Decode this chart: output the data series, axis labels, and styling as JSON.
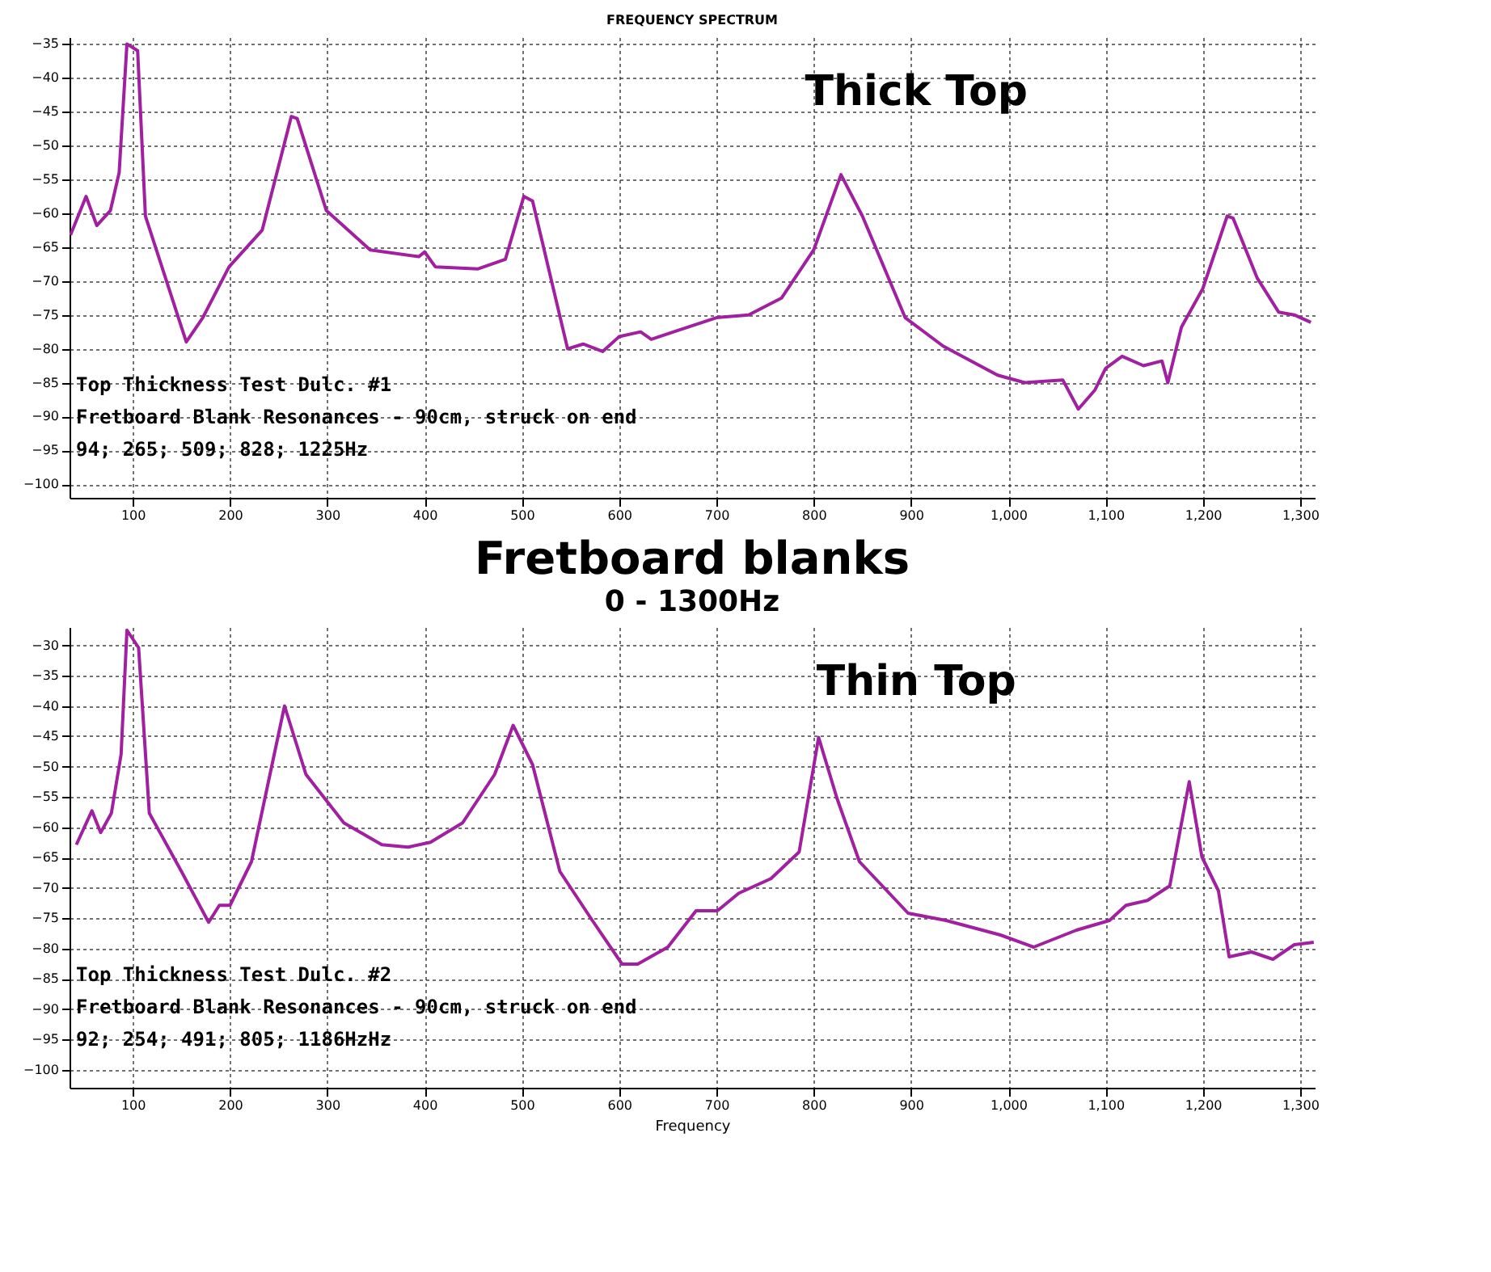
{
  "chart_data": [
    {
      "type": "line",
      "title": "FREQUENCY SPECTRUM",
      "annotations": [
        "Thick Top",
        "Top Thickness Test Dulc. #1",
        "Fretboard Blank Resonances - 90cm, struck on end",
        "94; 265; 509; 828; 1225Hz"
      ],
      "x": [
        36,
        52,
        63,
        77,
        86,
        94,
        105,
        113,
        155,
        172,
        199,
        233,
        263,
        269,
        299,
        344,
        394,
        400,
        411,
        455,
        483,
        502,
        511,
        547,
        563,
        583,
        600,
        622,
        633,
        656,
        700,
        733,
        767,
        800,
        828,
        850,
        894,
        933,
        989,
        1017,
        1056,
        1072,
        1089,
        1100,
        1117,
        1139,
        1158,
        1164,
        1178,
        1200,
        1225,
        1231,
        1256,
        1278,
        1294,
        1311
      ],
      "series": [
        {
          "color": "#a020a0",
          "values": [
            -63.2,
            -57.5,
            -61.8,
            -59.6,
            -54,
            -35,
            -36,
            -60.4,
            -79,
            -75.4,
            -67.9,
            -62.5,
            -45.7,
            -46,
            -59.6,
            -65.4,
            -66.4,
            -65.7,
            -67.9,
            -68.2,
            -66.8,
            -57.5,
            -58.2,
            -80,
            -79.3,
            -80.4,
            -78.2,
            -77.5,
            -78.6,
            -77.5,
            -75.4,
            -75,
            -72.5,
            -65.4,
            -54.3,
            -60.4,
            -75.4,
            -79.6,
            -83.9,
            -85,
            -84.6,
            -88.9,
            -86.1,
            -82.9,
            -81.1,
            -82.5,
            -81.8,
            -85,
            -76.8,
            -71.1,
            -60.4,
            -60.7,
            -69.6,
            -74.6,
            -75,
            -76.1
          ]
        }
      ],
      "xlim": [
        35,
        1315
      ],
      "ylim": [
        -102,
        -34
      ],
      "xticks": [
        100,
        200,
        300,
        400,
        500,
        600,
        700,
        800,
        900,
        {
          "value": 1000,
          "label": "1,000"
        },
        {
          "value": 1100,
          "label": "1,100"
        },
        {
          "value": 1200,
          "label": "1,200"
        },
        {
          "value": 1300,
          "label": "1,300"
        }
      ],
      "yticks": [
        -35,
        -40,
        -45,
        -50,
        -55,
        -60,
        -65,
        -70,
        -75,
        -80,
        -85,
        -90,
        -95,
        -100
      ],
      "grid": true,
      "marker": "none",
      "line_style": "solid"
    },
    {
      "type": "line",
      "title": "Fretboard blanks",
      "subtitle": "0 - 1300Hz",
      "xlabel": "Frequency",
      "annotations": [
        "Thin Top",
        "Top Thickness Test Dulc. #2",
        "Fretboard Blank Resonances - 90cm, struck on end",
        "92; 254; 491; 805; 1186HzHz"
      ],
      "x": [
        42,
        58,
        67,
        78,
        88,
        94,
        106,
        117,
        150,
        178,
        189,
        200,
        222,
        256,
        278,
        317,
        356,
        383,
        406,
        439,
        472,
        491,
        511,
        539,
        572,
        603,
        619,
        650,
        679,
        701,
        723,
        756,
        785,
        805,
        824,
        847,
        897,
        936,
        992,
        1026,
        1070,
        1104,
        1121,
        1143,
        1166,
        1186,
        1199,
        1216,
        1227,
        1250,
        1272,
        1294,
        1314
      ],
      "series": [
        {
          "color": "#a020a0",
          "values": [
            -62.9,
            -57.3,
            -60.9,
            -57.7,
            -48,
            -27.5,
            -30.4,
            -57.7,
            -67.3,
            -75.7,
            -72.9,
            -72.9,
            -65.7,
            -40,
            -51.3,
            -59.3,
            -62.9,
            -63.3,
            -62.5,
            -59.3,
            -51.3,
            -43.2,
            -49.7,
            -67.3,
            -75.3,
            -82.6,
            -82.6,
            -79.8,
            -73.8,
            -73.8,
            -70.9,
            -68.5,
            -64.1,
            -45.2,
            -55.3,
            -65.7,
            -74.2,
            -75.4,
            -77.8,
            -79.8,
            -77,
            -75.4,
            -72.9,
            -72.1,
            -69.7,
            -52.5,
            -64.9,
            -70.5,
            -81.4,
            -80.6,
            -81.8,
            -79.4,
            -79
          ]
        }
      ],
      "xlim": [
        35,
        1315
      ],
      "ylim": [
        -103,
        -27
      ],
      "xticks": [
        100,
        200,
        300,
        400,
        500,
        600,
        700,
        800,
        900,
        {
          "value": 1000,
          "label": "1,000"
        },
        {
          "value": 1100,
          "label": "1,100"
        },
        {
          "value": 1200,
          "label": "1,200"
        },
        {
          "value": 1300,
          "label": "1,300"
        }
      ],
      "yticks": [
        -30,
        -35,
        -40,
        -45,
        -50,
        -55,
        -60,
        -65,
        -70,
        -75,
        -80,
        -85,
        -90,
        -95,
        -100
      ],
      "grid": true,
      "marker": "none",
      "line_style": "solid"
    }
  ]
}
